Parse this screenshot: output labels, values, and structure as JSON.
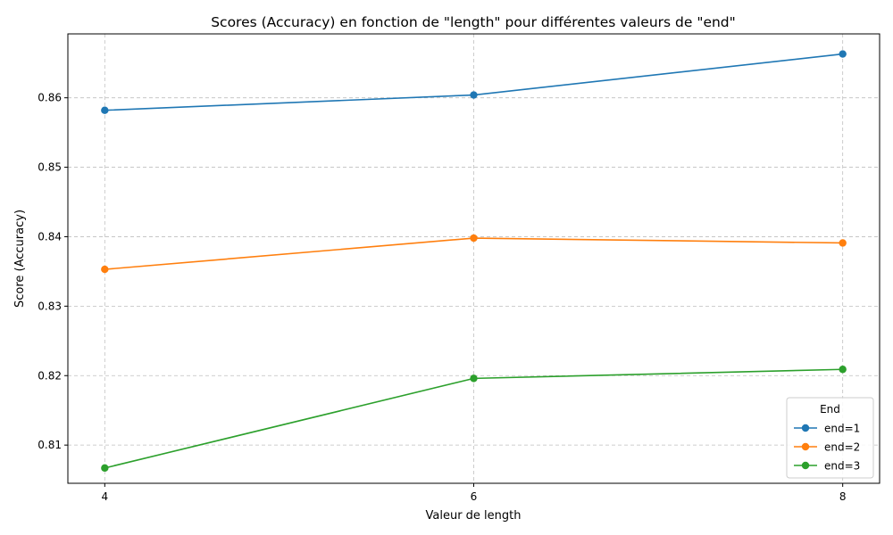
{
  "chart_data": {
    "type": "line",
    "title": "Scores (Accuracy) en fonction de \"length\" pour différentes valeurs de \"end\"",
    "xlabel": "Valeur de length",
    "ylabel": "Score (Accuracy)",
    "x": [
      4,
      6,
      8
    ],
    "xticks": [
      "4",
      "6",
      "8"
    ],
    "yticks": [
      "0.81",
      "0.82",
      "0.83",
      "0.84",
      "0.85",
      "0.86"
    ],
    "ylim": [
      0.8045,
      0.8692
    ],
    "xlim": [
      3.8,
      8.2
    ],
    "grid": true,
    "legend": {
      "title": "End",
      "placement": "lower right"
    },
    "series": [
      {
        "name": "end=1",
        "color": "#1f77b4",
        "values": [
          0.8582,
          0.8604,
          0.8663
        ]
      },
      {
        "name": "end=2",
        "color": "#ff7f0e",
        "values": [
          0.8353,
          0.8398,
          0.8391
        ]
      },
      {
        "name": "end=3",
        "color": "#2ca02c",
        "values": [
          0.8067,
          0.8196,
          0.8209
        ]
      }
    ]
  }
}
